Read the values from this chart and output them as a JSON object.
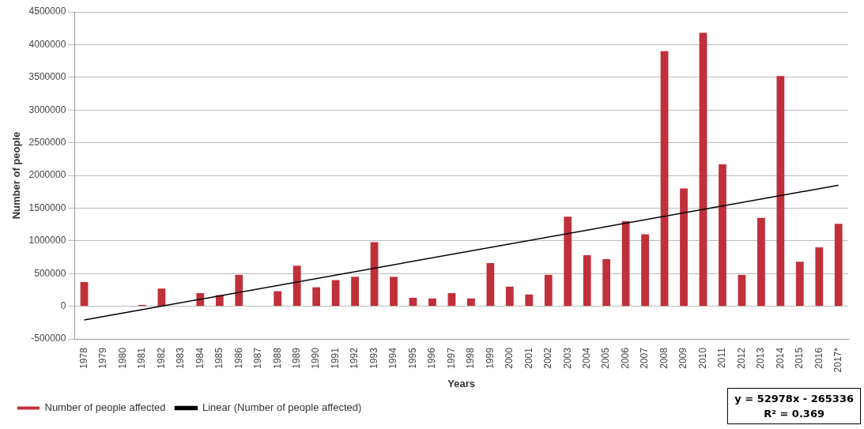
{
  "chart_data": {
    "type": "bar",
    "xlabel": "Years",
    "ylabel": "Number of people",
    "categories": [
      "1978",
      "1979",
      "1980",
      "1981",
      "1982",
      "1983",
      "1984",
      "1985",
      "1986",
      "1987",
      "1988",
      "1989",
      "1990",
      "1991",
      "1992",
      "1993",
      "1994",
      "1995",
      "1996",
      "1997",
      "1998",
      "1999",
      "2000",
      "2001",
      "2002",
      "2003",
      "2004",
      "2005",
      "2006",
      "2007",
      "2008",
      "2009",
      "2010",
      "2011",
      "2012",
      "2013",
      "2014",
      "2015",
      "2016",
      "2017*"
    ],
    "series": [
      {
        "name": "Number of people affected",
        "color": "#c0303a",
        "values": [
          370000,
          0,
          0,
          20000,
          270000,
          0,
          200000,
          170000,
          480000,
          0,
          230000,
          620000,
          290000,
          400000,
          450000,
          980000,
          450000,
          130000,
          120000,
          200000,
          120000,
          660000,
          300000,
          180000,
          480000,
          1370000,
          780000,
          720000,
          1300000,
          1100000,
          3900000,
          1800000,
          4180000,
          2170000,
          480000,
          1350000,
          3520000,
          680000,
          900000,
          1260000
        ]
      },
      {
        "name": "Linear (Number of people affected)",
        "type": "line",
        "color": "#000000",
        "values": [
          -210000,
          null,
          null,
          null,
          null,
          null,
          null,
          null,
          null,
          null,
          null,
          null,
          null,
          null,
          null,
          null,
          null,
          null,
          null,
          null,
          null,
          null,
          null,
          null,
          null,
          null,
          null,
          null,
          null,
          null,
          null,
          null,
          null,
          null,
          null,
          null,
          null,
          null,
          null,
          1850000
        ]
      }
    ],
    "ylim": [
      -500000,
      4500000
    ],
    "yticks": [
      -500000,
      0,
      500000,
      1000000,
      1500000,
      2000000,
      2500000,
      3000000,
      3500000,
      4000000,
      4500000
    ],
    "grid": "y",
    "legend": "bottom",
    "marker": "none",
    "annotations": [
      "y = 52978x - 265336",
      "R² = 0.369"
    ]
  }
}
